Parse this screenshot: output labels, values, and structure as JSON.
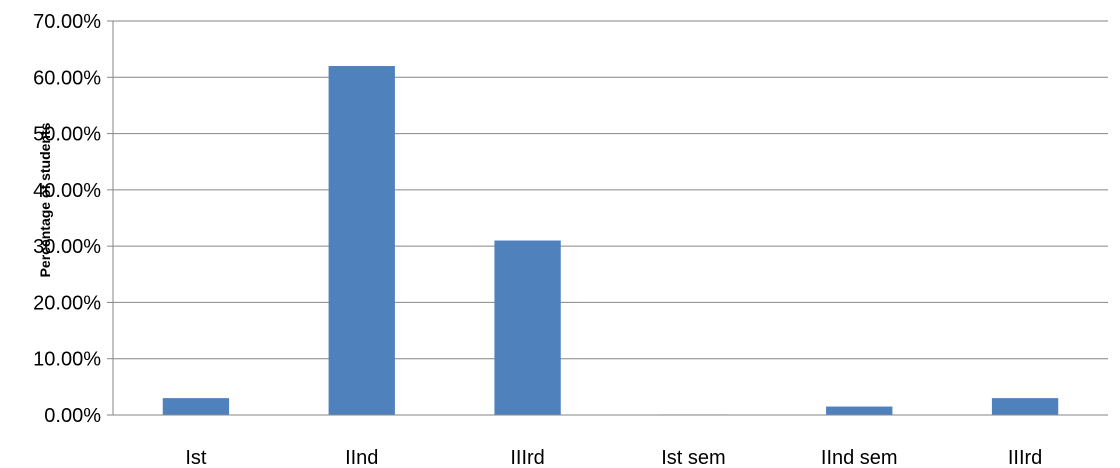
{
  "chart_data": {
    "type": "bar",
    "title": "",
    "xlabel": "",
    "ylabel": "Percentage of students",
    "categories": [
      "Ist",
      "IInd",
      "IIIrd",
      "Ist sem",
      "IInd sem",
      "IIIrd"
    ],
    "values": [
      3.0,
      62.0,
      31.0,
      0.1,
      1.5,
      3.0
    ],
    "ylim": [
      0,
      70
    ],
    "yticks": [
      "0.00%",
      "10.00%",
      "20.00%",
      "30.00%",
      "40.00%",
      "50.00%",
      "60.00%",
      "70.00%"
    ],
    "grid": true,
    "legend": "none",
    "bar_color": "#4F81BD",
    "grid_color": "#868686"
  }
}
